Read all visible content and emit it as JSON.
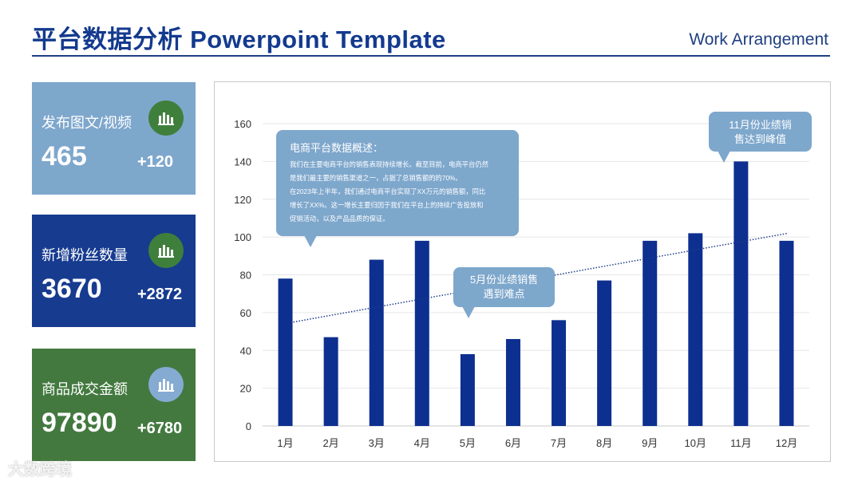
{
  "header": {
    "title": "平台数据分析 Powerpoint Template",
    "subtitle": "Work Arrangement"
  },
  "cards": [
    {
      "label": "发布图文/视频",
      "value": "465",
      "delta": "+120",
      "icon": "bar-chart-icon",
      "color": "#7ea7cc"
    },
    {
      "label": "新增粉丝数量",
      "value": "3670",
      "delta": "+2872",
      "icon": "bar-chart-icon",
      "color": "#173b8f"
    },
    {
      "label": "商品成交金额",
      "value": "97890",
      "delta": "+6780",
      "icon": "bar-chart-icon",
      "color": "#43793f"
    }
  ],
  "watermark": "大数跨境",
  "chart_data": {
    "type": "bar",
    "categories": [
      "1月",
      "2月",
      "3月",
      "4月",
      "5月",
      "6月",
      "7月",
      "8月",
      "9月",
      "10月",
      "11月",
      "12月"
    ],
    "values": [
      78,
      47,
      88,
      98,
      38,
      46,
      56,
      77,
      98,
      102,
      140,
      98
    ],
    "ylim": [
      0,
      160
    ],
    "yticks": [
      0,
      20,
      40,
      60,
      80,
      100,
      120,
      140,
      160
    ],
    "grid": true,
    "bar_color": "#0d2f8f",
    "trendline": {
      "style": "dotted",
      "from": 55,
      "to": 102
    },
    "annotations": {
      "summary": {
        "title": "电商平台数据概述：",
        "lines": [
          "我们在主要电商平台的销售表现持续增长。截至目前，电商平台仍然",
          "是我们最主要的销售渠道之一，占据了总销售额的的70%。",
          "在2023年上半年，我们通过电商平台实现了XX万元的销售额，同比",
          "增长了XX%。这一增长主要归因于我们在平台上的持续广告投放和",
          "促销活动，以及产品品质的保证。"
        ]
      },
      "may": {
        "lines": [
          "5月份业绩销售",
          "遇到难点"
        ]
      },
      "nov": {
        "lines": [
          "11月份业绩销",
          "售达到峰值"
        ]
      }
    }
  }
}
